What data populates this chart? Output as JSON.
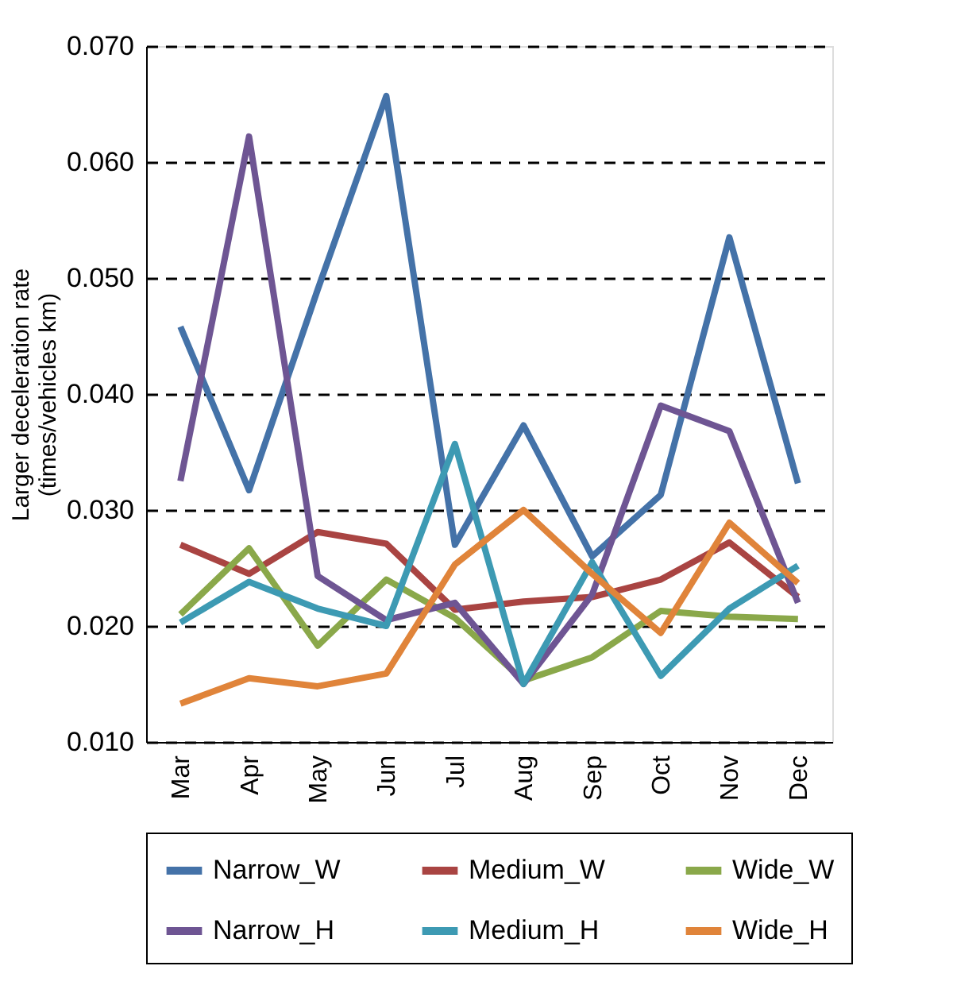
{
  "chart_data": {
    "type": "line",
    "ylabel": "Larger deceleration rate\n(times/vehicles km)",
    "categories": [
      "Mar",
      "Apr",
      "May",
      "Jun",
      "Jul",
      "Aug",
      "Sep",
      "Oct",
      "Nov",
      "Dec"
    ],
    "series": [
      {
        "name": "Narrow_W",
        "color": "#4472a8",
        "values": [
          0.0458,
          0.0317,
          0.049,
          0.0657,
          0.027,
          0.0373,
          0.026,
          0.0313,
          0.0535,
          0.0323
        ]
      },
      {
        "name": "Medium_W",
        "color": "#a94442",
        "values": [
          0.027,
          0.0245,
          0.0281,
          0.0271,
          0.0214,
          0.0221,
          0.0225,
          0.024,
          0.0272,
          0.0225
        ]
      },
      {
        "name": "Wide_W",
        "color": "#8aa84a",
        "values": [
          0.021,
          0.0267,
          0.0183,
          0.024,
          0.0207,
          0.0153,
          0.0173,
          0.0213,
          0.0208,
          0.0206
        ]
      },
      {
        "name": "Narrow_H",
        "color": "#6e5593",
        "values": [
          0.0325,
          0.0622,
          0.0243,
          0.0205,
          0.022,
          0.015,
          0.0227,
          0.039,
          0.0368,
          0.022
        ]
      },
      {
        "name": "Medium_H",
        "color": "#3d9ab3",
        "values": [
          0.0203,
          0.0238,
          0.0215,
          0.02,
          0.0357,
          0.015,
          0.0255,
          0.0157,
          0.0215,
          0.0252
        ]
      },
      {
        "name": "Wide_H",
        "color": "#e0843a",
        "values": [
          0.0133,
          0.0155,
          0.0148,
          0.0159,
          0.0253,
          0.03,
          0.0245,
          0.0194,
          0.0289,
          0.0237
        ]
      }
    ],
    "ylim": [
      0.01,
      0.07
    ],
    "yticks": [
      {
        "value": 0.01,
        "label": "0.010"
      },
      {
        "value": 0.02,
        "label": "0.020"
      },
      {
        "value": 0.03,
        "label": "0.030"
      },
      {
        "value": 0.04,
        "label": "0.040"
      },
      {
        "value": 0.05,
        "label": "0.050"
      },
      {
        "value": 0.06,
        "label": "0.060"
      },
      {
        "value": 0.07,
        "label": "0.070"
      }
    ],
    "grid": "y",
    "legend": "bottom",
    "marker": "none",
    "line_style": "solid"
  }
}
